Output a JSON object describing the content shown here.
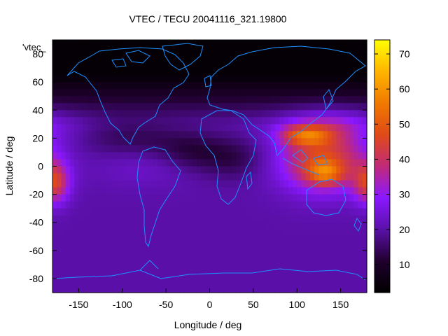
{
  "chart_data": {
    "type": "heatmap",
    "title": "VTEC / TECU 20041116_321.19800",
    "xlabel": "Longitude / deg",
    "ylabel": "Latitude / deg",
    "key_label": "'vtec_",
    "xlim": [
      -180,
      180
    ],
    "ylim": [
      -90,
      90
    ],
    "xticks": [
      -150,
      -100,
      -50,
      0,
      50,
      100,
      150
    ],
    "yticks": [
      -80,
      -60,
      -40,
      -20,
      0,
      20,
      40,
      60,
      80
    ],
    "colorbar": {
      "range": [
        2,
        74
      ],
      "ticks": [
        10,
        20,
        30,
        40,
        50,
        60,
        70
      ]
    },
    "colormap": [
      "#000000",
      "#20002e",
      "#5a10a8",
      "#8a18ff",
      "#c02a78",
      "#e04a18",
      "#f07a00",
      "#ffb400",
      "#ffff00"
    ],
    "coastline_color": "#1e90ff",
    "grid": false,
    "field": {
      "base": 20,
      "blobs": [
        {
          "lon": 130,
          "lat": 5,
          "sx": 35,
          "sy": 16,
          "amp": 26
        },
        {
          "lon": 110,
          "lat": 22,
          "sx": 20,
          "sy": 5,
          "amp": 22
        },
        {
          "lon": 132,
          "lat": -5,
          "sx": 15,
          "sy": 6,
          "amp": 18
        },
        {
          "lon": 140,
          "lat": 30,
          "sx": 40,
          "sy": 8,
          "amp": 8
        },
        {
          "lon": -178,
          "lat": -12,
          "sx": 12,
          "sy": 10,
          "amp": 22
        },
        {
          "lon": -70,
          "lat": 0,
          "sx": 40,
          "sy": 10,
          "amp": 4
        },
        {
          "lon": -20,
          "lat": 10,
          "sx": 30,
          "sy": 10,
          "amp": -8
        },
        {
          "lon": -90,
          "lat": 20,
          "sx": 40,
          "sy": 10,
          "amp": -6
        },
        {
          "lon": 30,
          "lat": 5,
          "sx": 25,
          "sy": 10,
          "amp": -6
        }
      ],
      "north_dark": 17
    }
  }
}
